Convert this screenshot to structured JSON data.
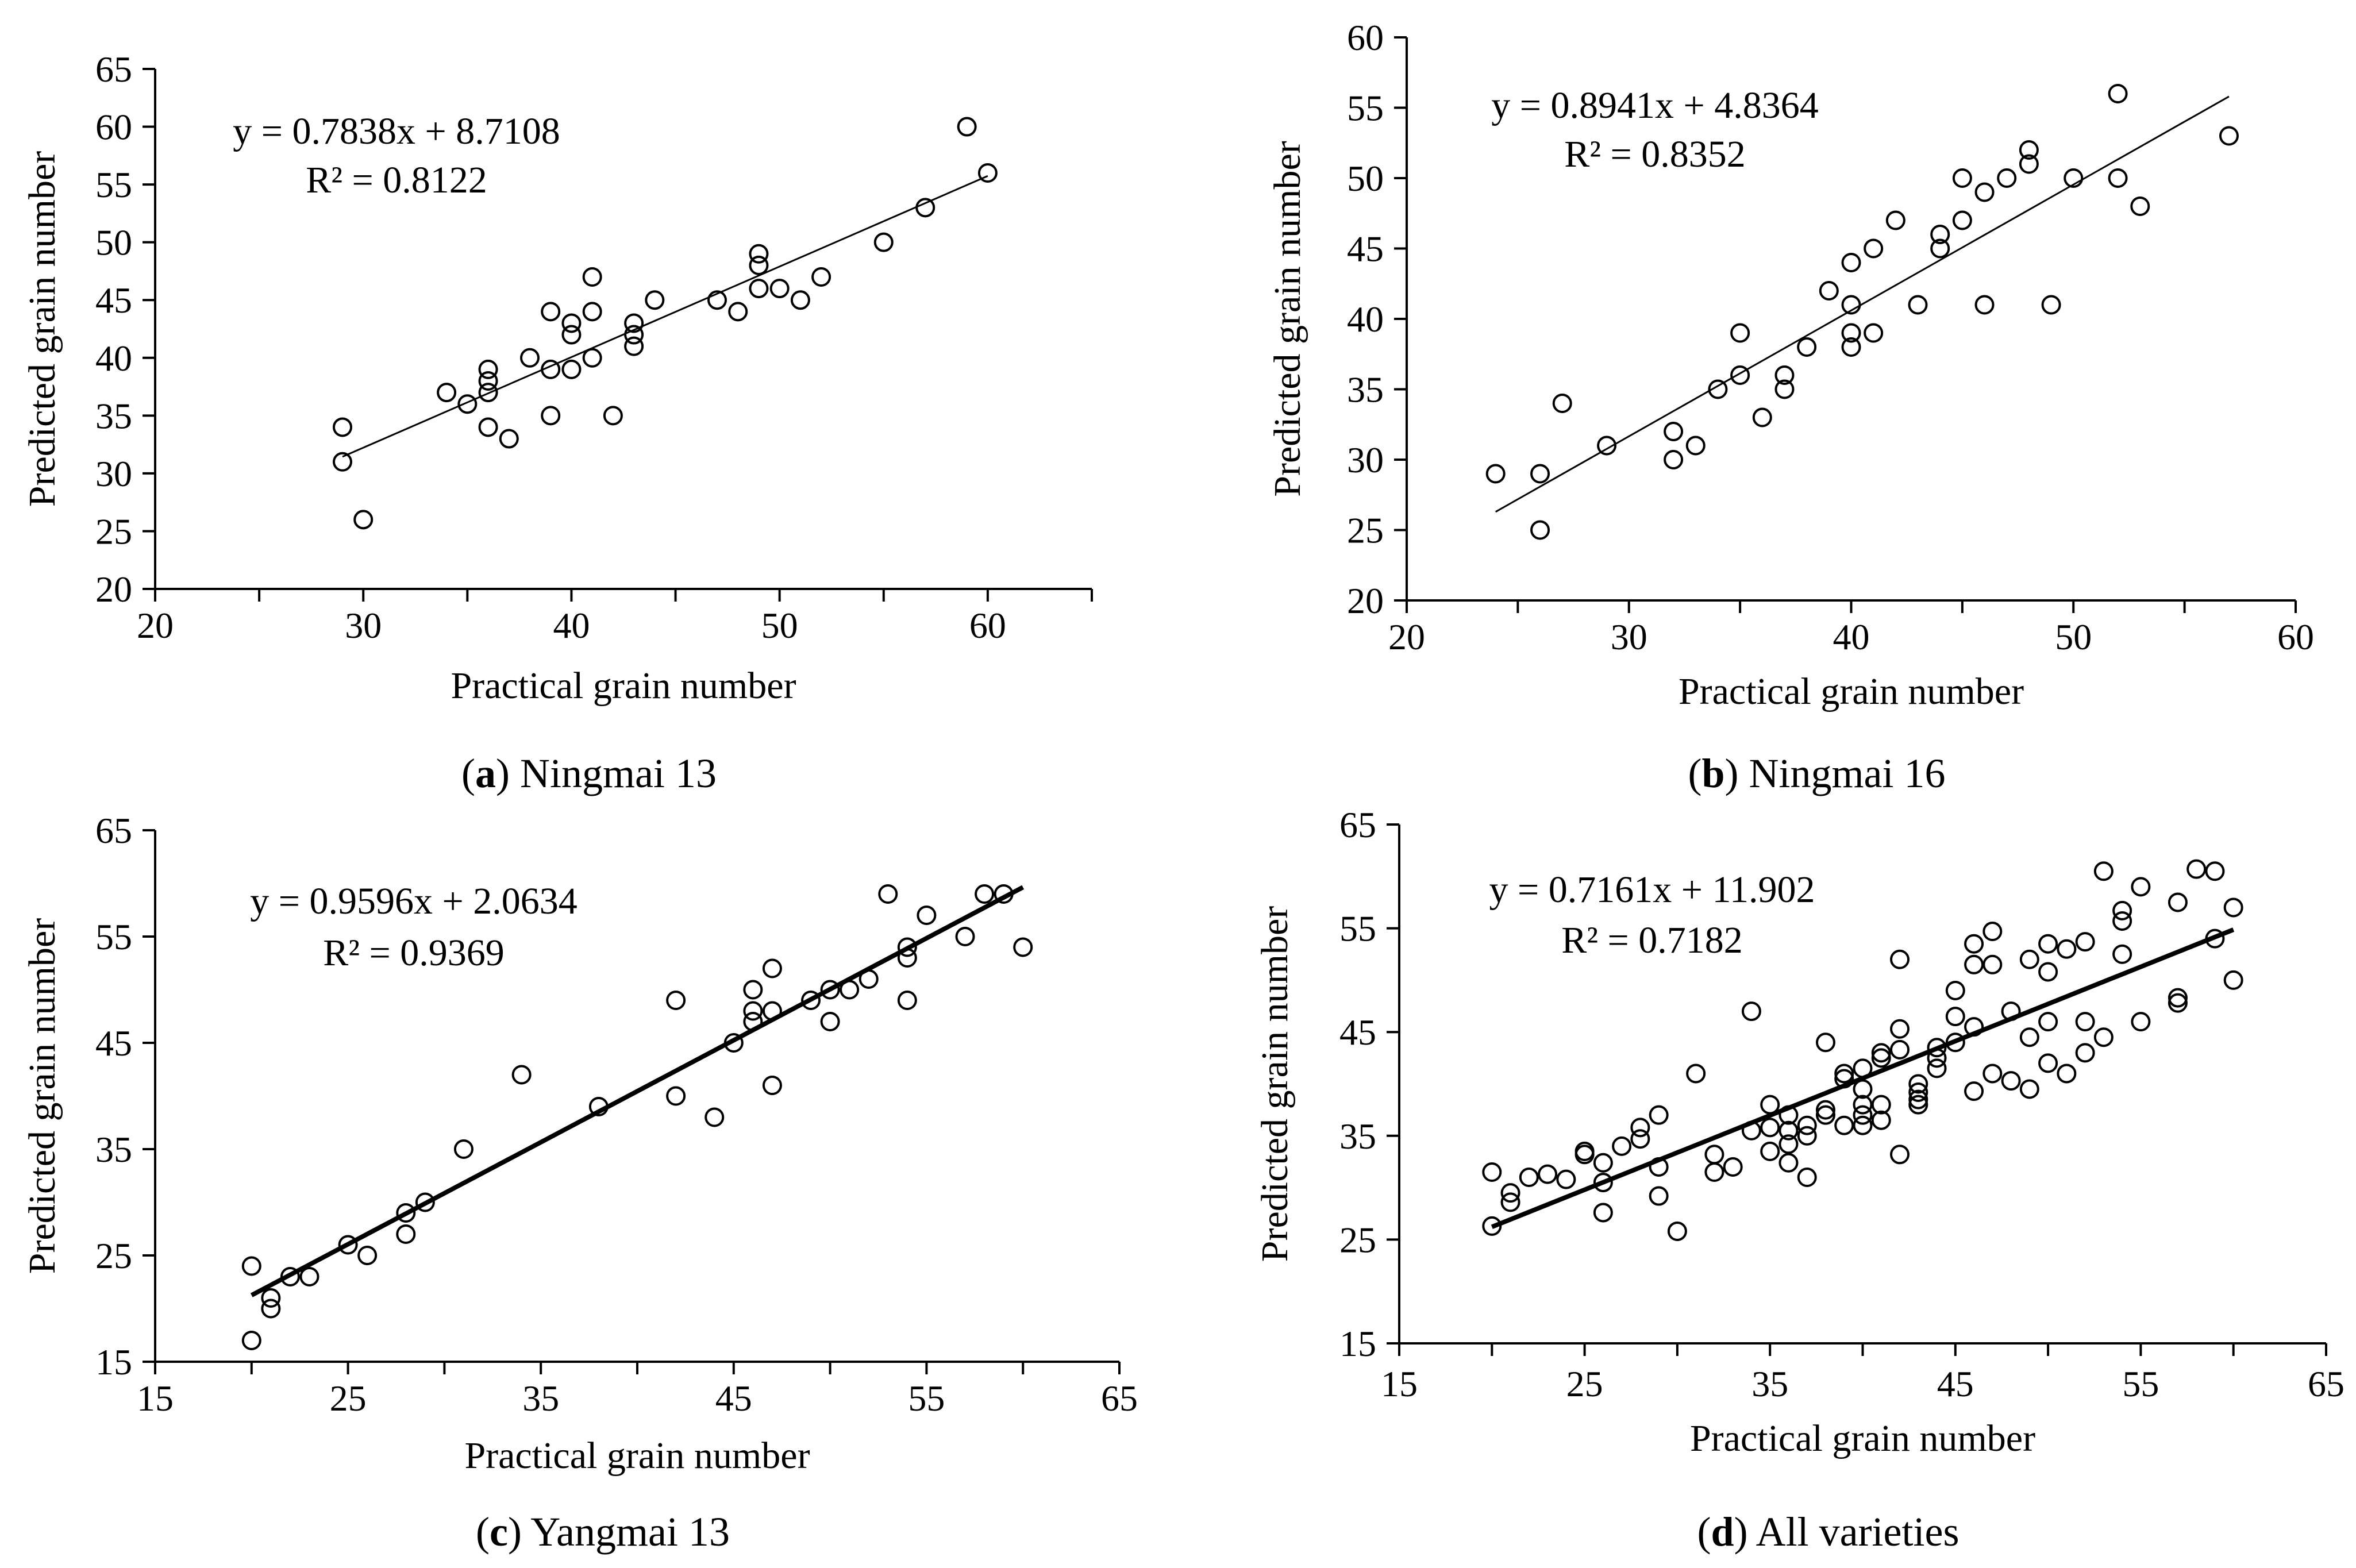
{
  "chart_data": [
    {
      "id": "a",
      "type": "scatter",
      "caption_letter": "a",
      "caption_name": "Ningmai 13",
      "xlabel": "Practical grain number",
      "ylabel": "Predicted grain number",
      "xlim": [
        20,
        65
      ],
      "ylim": [
        20,
        65
      ],
      "xticks": [
        20,
        30,
        40,
        50,
        60
      ],
      "yticks": [
        20,
        25,
        30,
        35,
        40,
        45,
        50,
        55,
        60,
        65
      ],
      "equation": "y = 0.7838x + 8.7108",
      "r2": "R² = 0.8122",
      "fit": {
        "slope": 0.7838,
        "intercept": 8.7108,
        "x_range": [
          29,
          60
        ]
      },
      "line_style": "thin",
      "x": [
        29,
        29,
        30,
        34,
        35,
        36,
        36,
        36,
        36,
        37,
        38,
        39,
        39,
        39,
        40,
        40,
        40,
        41,
        41,
        41,
        42,
        43,
        43,
        43,
        44,
        47,
        48,
        49,
        49,
        49,
        50,
        51,
        52,
        55,
        57,
        59,
        60
      ],
      "y": [
        34,
        31,
        26,
        37,
        36,
        39,
        38,
        37,
        34,
        33,
        40,
        44,
        39,
        35,
        43,
        42,
        39,
        47,
        44,
        40,
        35,
        43,
        42,
        41,
        45,
        45,
        44,
        49,
        48,
        46,
        46,
        45,
        47,
        50,
        53,
        60,
        56
      ]
    },
    {
      "id": "b",
      "type": "scatter",
      "caption_letter": "b",
      "caption_name": "Ningmai 16",
      "xlabel": "Practical grain number",
      "ylabel": "Predicted grain number",
      "xlim": [
        20,
        60
      ],
      "ylim": [
        20,
        60
      ],
      "xticks": [
        20,
        30,
        40,
        50,
        60
      ],
      "yticks": [
        20,
        25,
        30,
        35,
        40,
        45,
        50,
        55,
        60
      ],
      "equation": "y = 0.8941x + 4.8364",
      "r2": "R² = 0.8352",
      "fit": {
        "slope": 0.8941,
        "intercept": 4.8364,
        "x_range": [
          24,
          57
        ]
      },
      "line_style": "thin",
      "x": [
        24,
        26,
        26,
        27,
        29,
        32,
        32,
        33,
        34,
        35,
        35,
        36,
        37,
        37,
        38,
        39,
        40,
        40,
        40,
        40,
        41,
        41,
        42,
        43,
        44,
        44,
        45,
        45,
        46,
        46,
        47,
        48,
        48,
        49,
        50,
        52,
        52,
        53,
        57
      ],
      "y": [
        29,
        29,
        25,
        34,
        31,
        32,
        30,
        31,
        35,
        39,
        36,
        33,
        36,
        35,
        38,
        42,
        44,
        41,
        39,
        38,
        45,
        39,
        47,
        41,
        46,
        45,
        50,
        47,
        49,
        41,
        50,
        52,
        51,
        41,
        50,
        56,
        50,
        48,
        53
      ]
    },
    {
      "id": "c",
      "type": "scatter",
      "caption_letter": "c",
      "caption_name": "Yangmai 13",
      "xlabel": "Practical grain number",
      "ylabel": "Predicted grain number",
      "xlim": [
        15,
        65
      ],
      "ylim": [
        15,
        65
      ],
      "xticks": [
        15,
        25,
        35,
        45,
        55,
        65
      ],
      "yticks": [
        15,
        25,
        35,
        45,
        55,
        65
      ],
      "equation": "y = 0.9596x + 2.0634",
      "r2": "R² = 0.9369",
      "fit": {
        "slope": 0.9596,
        "intercept": 2.0634,
        "x_range": [
          20,
          60
        ]
      },
      "line_style": "thick",
      "x": [
        20,
        20,
        21,
        21,
        22,
        23,
        25,
        26,
        28,
        28,
        29,
        31,
        34,
        38,
        42,
        42,
        44,
        45,
        46,
        46,
        46,
        47,
        47,
        47,
        49,
        50,
        50,
        51,
        52,
        53,
        54,
        54,
        54,
        55,
        57,
        58,
        59,
        60
      ],
      "y": [
        24,
        17,
        21,
        20,
        23,
        23,
        26,
        25,
        29,
        27,
        30,
        35,
        42,
        39,
        49,
        40,
        38,
        45,
        50,
        48,
        47,
        52,
        48,
        41,
        49,
        50,
        47,
        50,
        51,
        59,
        54,
        53,
        49,
        57,
        55,
        59,
        59,
        54
      ]
    },
    {
      "id": "d",
      "type": "scatter",
      "caption_letter": "d",
      "caption_name": "All varieties",
      "xlabel": "Practical grain number",
      "ylabel": "Predicted grain number",
      "xlim": [
        15,
        65
      ],
      "ylim": [
        15,
        65
      ],
      "xticks": [
        15,
        25,
        35,
        45,
        55,
        65
      ],
      "yticks": [
        15,
        25,
        35,
        45,
        55,
        65
      ],
      "equation": "y = 0.7161x + 11.902",
      "r2": "R² = 0.7182",
      "fit": {
        "slope": 0.7161,
        "intercept": 11.902,
        "x_range": [
          20,
          60
        ]
      },
      "line_style": "thick",
      "x": [
        20,
        20,
        21,
        21,
        22,
        23,
        24,
        25,
        25,
        26,
        26,
        26,
        27,
        28,
        28,
        29,
        29,
        29,
        30,
        31,
        32,
        32,
        33,
        34,
        34,
        35,
        35,
        35,
        36,
        36,
        36,
        36,
        37,
        37,
        37,
        38,
        38,
        38,
        39,
        39,
        39,
        40,
        40,
        40,
        40,
        40,
        41,
        41,
        41,
        41,
        42,
        42,
        42,
        42,
        43,
        43,
        43,
        43,
        44,
        44,
        44,
        45,
        45,
        45,
        46,
        46,
        46,
        46,
        47,
        47,
        47,
        48,
        48,
        49,
        49,
        49,
        50,
        50,
        50,
        50,
        51,
        51,
        52,
        52,
        52,
        53,
        53,
        54,
        54,
        54,
        55,
        55,
        57,
        57,
        57,
        58,
        59,
        59,
        60,
        60
      ],
      "y": [
        31.5,
        26.3,
        29.5,
        28.6,
        31,
        31.3,
        30.8,
        33.5,
        33.2,
        32.4,
        30.5,
        27.6,
        34,
        35.8,
        34.7,
        37,
        32,
        29.2,
        25.8,
        41,
        33.2,
        31.5,
        32,
        47,
        35.5,
        38,
        35.8,
        33.5,
        37,
        35.5,
        34.2,
        32.4,
        36,
        35,
        31,
        44,
        37.5,
        37,
        41,
        40.5,
        36,
        41.5,
        39.5,
        38,
        37,
        36,
        43,
        42.5,
        38,
        36.5,
        52,
        45.3,
        43.3,
        33.2,
        40,
        39.2,
        38.5,
        38,
        43.5,
        42.5,
        41.5,
        49,
        46.5,
        44,
        53.5,
        51.5,
        45.5,
        39.3,
        54.7,
        51.5,
        41,
        47,
        40.3,
        52,
        44.5,
        39.5,
        53.5,
        50.8,
        46,
        42,
        53,
        41,
        53.7,
        46,
        43,
        60.5,
        44.5,
        56.7,
        55.7,
        52.5,
        59,
        46,
        57.5,
        48.3,
        47.8,
        60.7,
        60.5,
        54,
        57,
        50
      ]
    }
  ]
}
